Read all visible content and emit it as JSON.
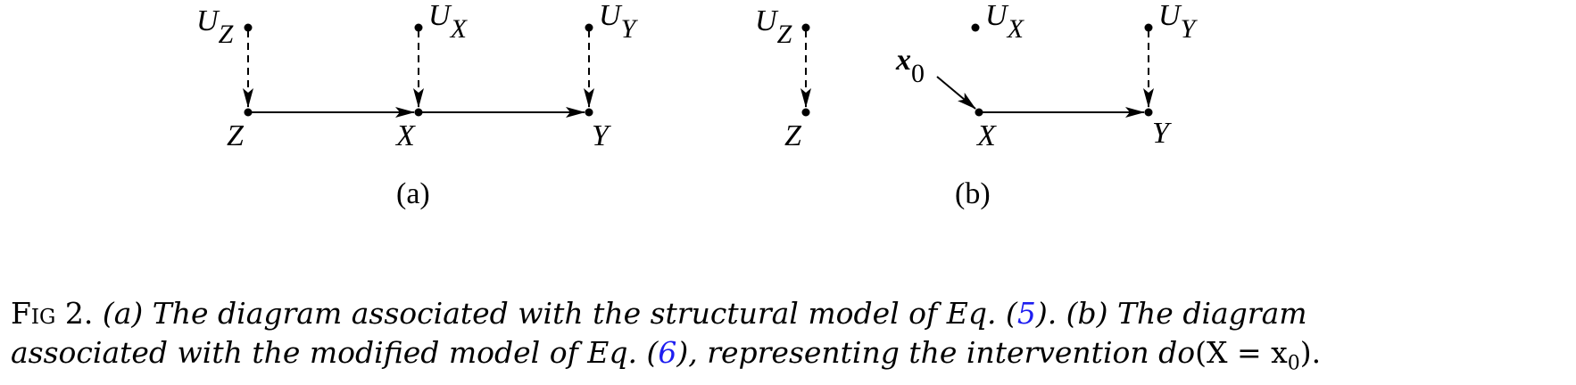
{
  "panel_a": {
    "label": "(a)",
    "nodes": {
      "Z": {
        "label": "Z"
      },
      "X": {
        "label": "X"
      },
      "Y": {
        "label": "Y"
      },
      "UZ": {
        "label": "U",
        "sub": "Z"
      },
      "UX": {
        "label": "U",
        "sub": "X"
      },
      "UY": {
        "label": "U",
        "sub": "Y"
      }
    }
  },
  "panel_b": {
    "label": "(b)",
    "nodes": {
      "Z": {
        "label": "Z"
      },
      "X": {
        "label": "X"
      },
      "Y": {
        "label": "Y"
      },
      "UZ": {
        "label": "U",
        "sub": "Z"
      },
      "UX": {
        "label": "U",
        "sub": "X"
      },
      "UY": {
        "label": "U",
        "sub": "Y"
      },
      "x0": {
        "label": "x",
        "sub": "0"
      }
    }
  },
  "caption": {
    "fig": "Fig 2.",
    "line1_a": "(a) The diagram associated with the structural model of Eq. (",
    "ref1": "5",
    "line1_b": "). (b) The diagram",
    "line2_a": "associated with the modified model of Eq. (",
    "ref2": "6",
    "line2_b": "), representing the intervention ",
    "do_text": "do",
    "formula": "(X = x",
    "formula_sub": "0",
    "formula_end": ")."
  },
  "colors": {
    "ink": "#000000",
    "link": "#1d1df0"
  }
}
